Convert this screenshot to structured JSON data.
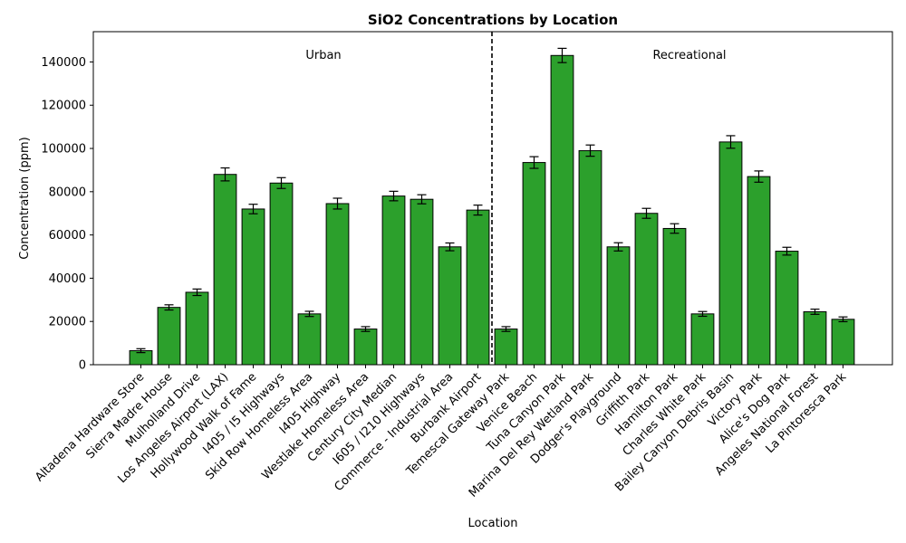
{
  "chart_data": {
    "type": "bar",
    "title": "SiO2 Concentrations by Location",
    "xlabel": "Location",
    "ylabel": "Concentration (ppm)",
    "ylim": [
      0,
      154000
    ],
    "yticks": [
      0,
      20000,
      40000,
      60000,
      80000,
      100000,
      120000,
      140000
    ],
    "grid": false,
    "bar_color": "#2ca02c",
    "edge_color": "#000000",
    "categories": [
      "Altadena Hardware Store",
      "Sierra Madre House",
      "Mulholland Drive",
      "Los Angeles Airport (LAX)",
      "Hollywood Walk of Fame",
      "I405 / I5 Highways",
      "Skid Row Homeless Area",
      "I405 Highway",
      "Westlake Homeless Area",
      "Century City Median",
      "I605 / I210 Highways",
      "Commerce - Industrial Area",
      "Burbank Airport",
      "Temescal Gateway Park",
      "Venice Beach",
      "Tuna Canyon Park",
      "Marina Del Rey Wetland Park",
      "Dodger's Playground",
      "Griffith Park",
      "Hamilton Park",
      "Charles White Park",
      "Bailey Canyon Debris Basin",
      "Victory Park",
      "Alice's Dog Park",
      "Angeles National Forest",
      "La Pintoresca Park"
    ],
    "values": [
      6500,
      26500,
      33500,
      88000,
      72000,
      84000,
      23500,
      74500,
      16500,
      78000,
      76500,
      54500,
      71500,
      16500,
      93500,
      143000,
      99000,
      54500,
      70000,
      63000,
      23500,
      103000,
      87000,
      52500,
      24500,
      21000
    ],
    "errors": [
      900,
      1200,
      1500,
      3000,
      2200,
      2500,
      1200,
      2500,
      1100,
      2200,
      2100,
      1800,
      2300,
      1100,
      2700,
      3300,
      2600,
      1900,
      2300,
      2200,
      1100,
      2900,
      2600,
      1800,
      1200,
      1100
    ],
    "groups": [
      {
        "label": "Urban",
        "start_index": 0,
        "end_index": 12
      },
      {
        "label": "Recreational",
        "start_index": 13,
        "end_index": 25
      }
    ],
    "divider": {
      "style": "dashed",
      "between_indices": [
        12,
        13
      ]
    }
  }
}
